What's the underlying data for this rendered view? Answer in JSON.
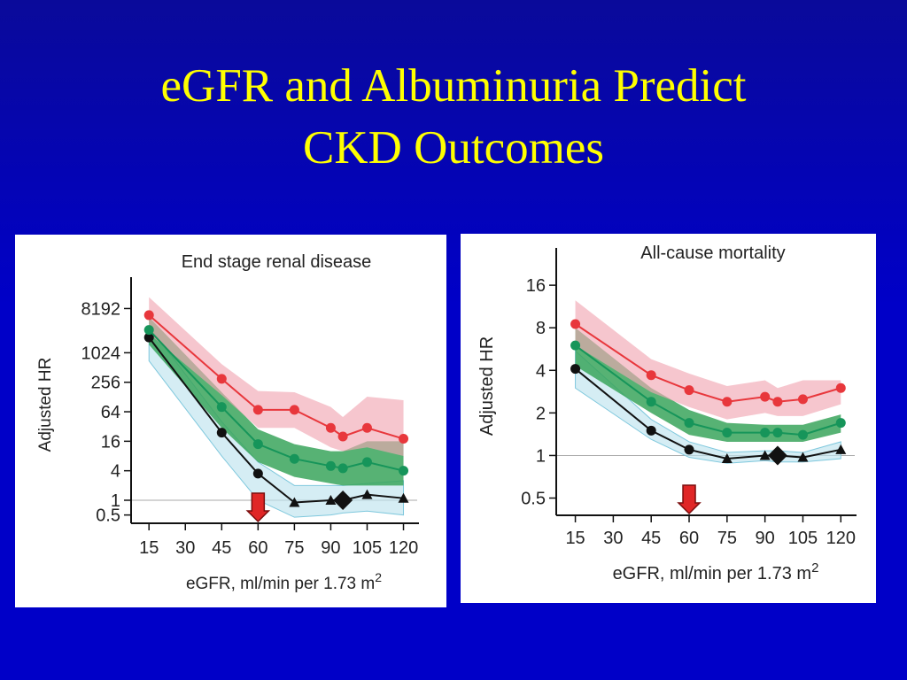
{
  "slide": {
    "title_line1": "eGFR and Albuminuria Predict",
    "title_line2": "CKD Outcomes"
  },
  "chart_data": [
    {
      "type": "line",
      "title": "End stage renal disease",
      "xlabel": "eGFR, ml/min per 1.73 m",
      "xlabel_sup": "2",
      "ylabel": "Adjusted HR",
      "y_scale": "log2",
      "x_ticks": [
        15,
        30,
        45,
        60,
        75,
        90,
        105,
        120
      ],
      "y_ticks": [
        0.5,
        1,
        4,
        16,
        64,
        256,
        1024,
        8192
      ],
      "y_tick_labels": [
        "0.5",
        "1",
        "4",
        "16",
        "64",
        "256",
        "1024",
        "8192"
      ],
      "xlim": [
        12,
        122
      ],
      "ylim": [
        0.4,
        20000
      ],
      "reference_x": 60,
      "reference_point": {
        "x": 95,
        "y": 1
      },
      "series": [
        {
          "color": "#e8373c",
          "band_color": "#f1a8b3",
          "marker": "circle",
          "x": [
            15,
            45,
            60,
            75,
            90,
            95,
            105,
            120
          ],
          "y": [
            6000,
            300,
            70,
            70,
            30,
            20,
            30,
            18
          ],
          "lower": [
            2500,
            140,
            30,
            30,
            12,
            10,
            12,
            8
          ],
          "upper": [
            14000,
            600,
            170,
            160,
            80,
            50,
            130,
            110
          ]
        },
        {
          "color": "#16955a",
          "band_color": "#3aa45c",
          "marker": "circle",
          "x": [
            15,
            45,
            60,
            75,
            90,
            95,
            105,
            120
          ],
          "y": [
            3000,
            80,
            14,
            7,
            5,
            4.5,
            6,
            4
          ],
          "lower": [
            1500,
            30,
            6,
            3,
            2.2,
            2,
            2,
            2
          ],
          "upper": [
            5500,
            160,
            28,
            14,
            10,
            10,
            16,
            16
          ]
        },
        {
          "color": "#111111",
          "band_color": "#bfe3ee",
          "marker": "circle-triangle",
          "x": [
            15,
            45,
            60,
            75,
            90,
            95,
            105,
            120
          ],
          "y": [
            2100,
            24,
            3.5,
            0.9,
            1,
            1,
            1.3,
            1.1
          ],
          "lower": [
            700,
            8,
            1,
            0.45,
            0.5,
            0.55,
            0.6,
            0.5
          ],
          "upper": [
            3500,
            40,
            6,
            2,
            2,
            2,
            2.2,
            2.5
          ]
        }
      ]
    },
    {
      "type": "line",
      "title": "All-cause mortality",
      "xlabel": "eGFR, ml/min per 1.73 m",
      "xlabel_sup": "2",
      "ylabel": "Adjusted HR",
      "y_scale": "log2",
      "x_ticks": [
        15,
        30,
        45,
        60,
        75,
        90,
        105,
        120
      ],
      "y_ticks": [
        0.5,
        1,
        2,
        4,
        8,
        16
      ],
      "y_tick_labels": [
        "0.5",
        "1",
        "2",
        "4",
        "8",
        "16"
      ],
      "xlim": [
        12,
        122
      ],
      "ylim": [
        0.4,
        24
      ],
      "reference_x": 60,
      "reference_point": {
        "x": 95,
        "y": 1
      },
      "series": [
        {
          "color": "#e8373c",
          "band_color": "#f1a8b3",
          "marker": "circle",
          "x": [
            15,
            45,
            60,
            75,
            90,
            95,
            105,
            120
          ],
          "y": [
            8.5,
            3.7,
            2.9,
            2.4,
            2.6,
            2.4,
            2.5,
            3.0
          ],
          "lower": [
            6.0,
            2.8,
            2.2,
            1.8,
            2.0,
            1.9,
            1.9,
            2.3
          ],
          "upper": [
            12.5,
            4.8,
            3.8,
            3.1,
            3.4,
            3.0,
            3.4,
            3.4
          ]
        },
        {
          "color": "#16955a",
          "band_color": "#3aa45c",
          "marker": "circle",
          "x": [
            15,
            45,
            60,
            75,
            90,
            95,
            105,
            120
          ],
          "y": [
            6.0,
            2.4,
            1.7,
            1.45,
            1.45,
            1.45,
            1.4,
            1.7
          ],
          "lower": [
            4.3,
            2.0,
            1.4,
            1.25,
            1.25,
            1.25,
            1.25,
            1.45
          ],
          "upper": [
            8.0,
            3.0,
            2.1,
            1.7,
            1.65,
            1.65,
            1.65,
            1.95
          ]
        },
        {
          "color": "#111111",
          "band_color": "#bfe3ee",
          "marker": "circle-triangle",
          "x": [
            15,
            45,
            60,
            75,
            90,
            95,
            105,
            120
          ],
          "y": [
            4.1,
            1.5,
            1.1,
            0.95,
            1.0,
            1.0,
            0.97,
            1.1
          ],
          "lower": [
            3.0,
            1.3,
            0.97,
            0.88,
            0.92,
            0.9,
            0.9,
            0.95
          ],
          "upper": [
            5.5,
            1.8,
            1.25,
            1.05,
            1.08,
            1.08,
            1.05,
            1.25
          ]
        }
      ]
    }
  ]
}
